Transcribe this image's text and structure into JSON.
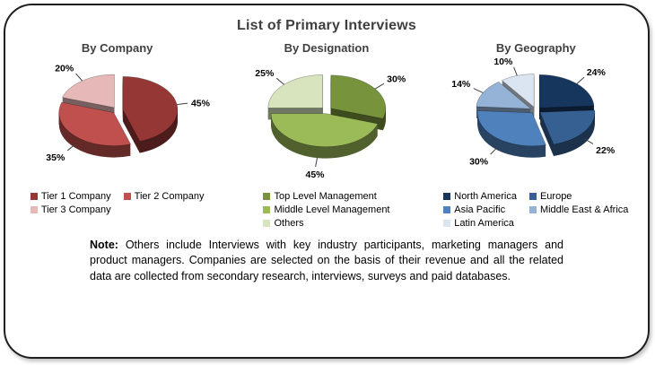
{
  "title": "List of Primary Interviews",
  "chart_data": [
    {
      "type": "pie",
      "title": "By Company",
      "labels": [
        "Tier 1 Company",
        "Tier 2 Company",
        "Tier 3 Company"
      ],
      "values": [
        45,
        35,
        20
      ],
      "value_labels": [
        "45%",
        "35%",
        "20%"
      ],
      "colors": [
        "#953735",
        "#C0504D",
        "#E6B9B8"
      ],
      "start_angle": 0,
      "direction": "clockwise",
      "legend_position": "bottom",
      "legend_columns": 2
    },
    {
      "type": "pie",
      "title": "By Designation",
      "labels": [
        "Top Level Management",
        "Middle Level Management",
        "Others"
      ],
      "values": [
        30,
        45,
        25
      ],
      "value_labels": [
        "30%",
        "45%",
        "25%"
      ],
      "colors": [
        "#77933C",
        "#9BBB59",
        "#D7E4BD"
      ],
      "start_angle": 0,
      "direction": "clockwise",
      "legend_position": "bottom",
      "legend_columns": 1
    },
    {
      "type": "pie",
      "title": "By Geography",
      "labels": [
        "North America",
        "Europe",
        "Asia Pacific",
        "Middle East & Africa",
        "Latin America"
      ],
      "values": [
        24,
        22,
        30,
        14,
        10
      ],
      "value_labels": [
        "24%",
        "22%",
        "30%",
        "14%",
        "10%"
      ],
      "colors": [
        "#17365D",
        "#366092",
        "#4F81BD",
        "#95B3D7",
        "#DBE5F1"
      ],
      "start_angle": 0,
      "direction": "clockwise",
      "legend_position": "bottom",
      "legend_columns": 2
    }
  ],
  "note": {
    "label": "Note:",
    "text": "Others include Interviews with key industry participants, marketing managers and product managers. Companies are selected on the basis of their revenue and all the related data are collected from secondary research, interviews, surveys and paid databases."
  }
}
